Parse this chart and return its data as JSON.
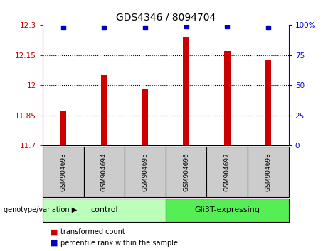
{
  "title": "GDS4346 / 8094704",
  "samples": [
    "GSM904693",
    "GSM904694",
    "GSM904695",
    "GSM904696",
    "GSM904697",
    "GSM904698"
  ],
  "transformed_counts": [
    11.87,
    12.05,
    11.98,
    12.24,
    12.17,
    12.13
  ],
  "percentile_ranks": [
    98,
    98,
    98,
    99,
    99,
    98
  ],
  "ylim_left": [
    11.7,
    12.3
  ],
  "ylim_right": [
    0,
    100
  ],
  "yticks_left": [
    11.7,
    11.85,
    12.0,
    12.15,
    12.3
  ],
  "ytick_labels_left": [
    "11.7",
    "11.85",
    "12",
    "12.15",
    "12.3"
  ],
  "yticks_right": [
    0,
    25,
    50,
    75,
    100
  ],
  "ytick_labels_right": [
    "0",
    "25",
    "50",
    "75",
    "100%"
  ],
  "bar_color": "#cc0000",
  "dot_color": "#0000cc",
  "bar_width": 0.15,
  "groups": [
    {
      "label": "control",
      "indices": [
        0,
        1,
        2
      ]
    },
    {
      "label": "Gli3T-expressing",
      "indices": [
        3,
        4,
        5
      ]
    }
  ],
  "group_colors": [
    "#bbffbb",
    "#55ee55"
  ],
  "sample_box_color": "#cccccc",
  "legend_red_label": "transformed count",
  "legend_blue_label": "percentile rank within the sample",
  "genotype_label": "genotype/variation",
  "dotted_lines": [
    11.85,
    12.0,
    12.15
  ],
  "dot_markersize": 5
}
